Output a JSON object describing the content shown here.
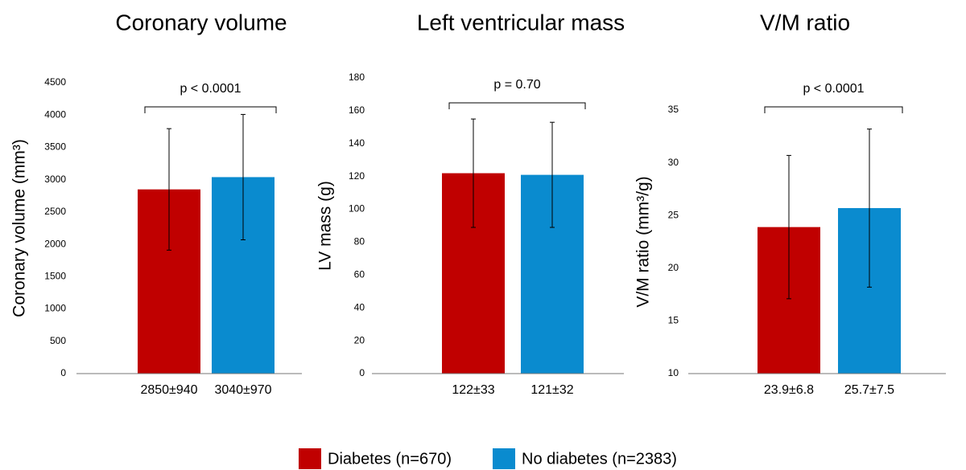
{
  "chart_data": [
    {
      "type": "bar",
      "title": "Coronary volume",
      "y_label": "Coronary volume (mm³)",
      "annotation": "p < 0.0001",
      "categories": [
        "2850±940",
        "3040±970"
      ],
      "values": [
        2850,
        3040
      ],
      "errors": [
        940,
        970
      ],
      "ylim": [
        0,
        4500
      ],
      "yticks": [
        0,
        500,
        1000,
        1500,
        2000,
        2500,
        3000,
        3500,
        4000,
        4500
      ]
    },
    {
      "type": "bar",
      "title": "Left ventricular mass",
      "y_label": "LV mass (g)",
      "annotation": "p = 0.70",
      "categories": [
        "122±33",
        "121±32"
      ],
      "values": [
        122,
        121
      ],
      "errors": [
        33,
        32
      ],
      "ylim": [
        0,
        180
      ],
      "yticks": [
        0,
        20,
        40,
        60,
        80,
        100,
        120,
        140,
        160,
        180
      ]
    },
    {
      "type": "bar",
      "title": "V/M ratio",
      "y_label": "V/M ratio (mm³/g)",
      "annotation": "p < 0.0001",
      "categories": [
        "23.9±6.8",
        "25.7±7.5"
      ],
      "values": [
        23.9,
        25.7
      ],
      "errors": [
        6.8,
        7.5
      ],
      "ylim": [
        10,
        35
      ],
      "yticks": [
        10,
        15,
        20,
        25,
        30,
        35
      ]
    }
  ],
  "legend": [
    {
      "name": "Diabetes (n=670)",
      "color": "#c00000"
    },
    {
      "name": "No diabetes (n=2383)",
      "color": "#0a8bcf"
    }
  ]
}
